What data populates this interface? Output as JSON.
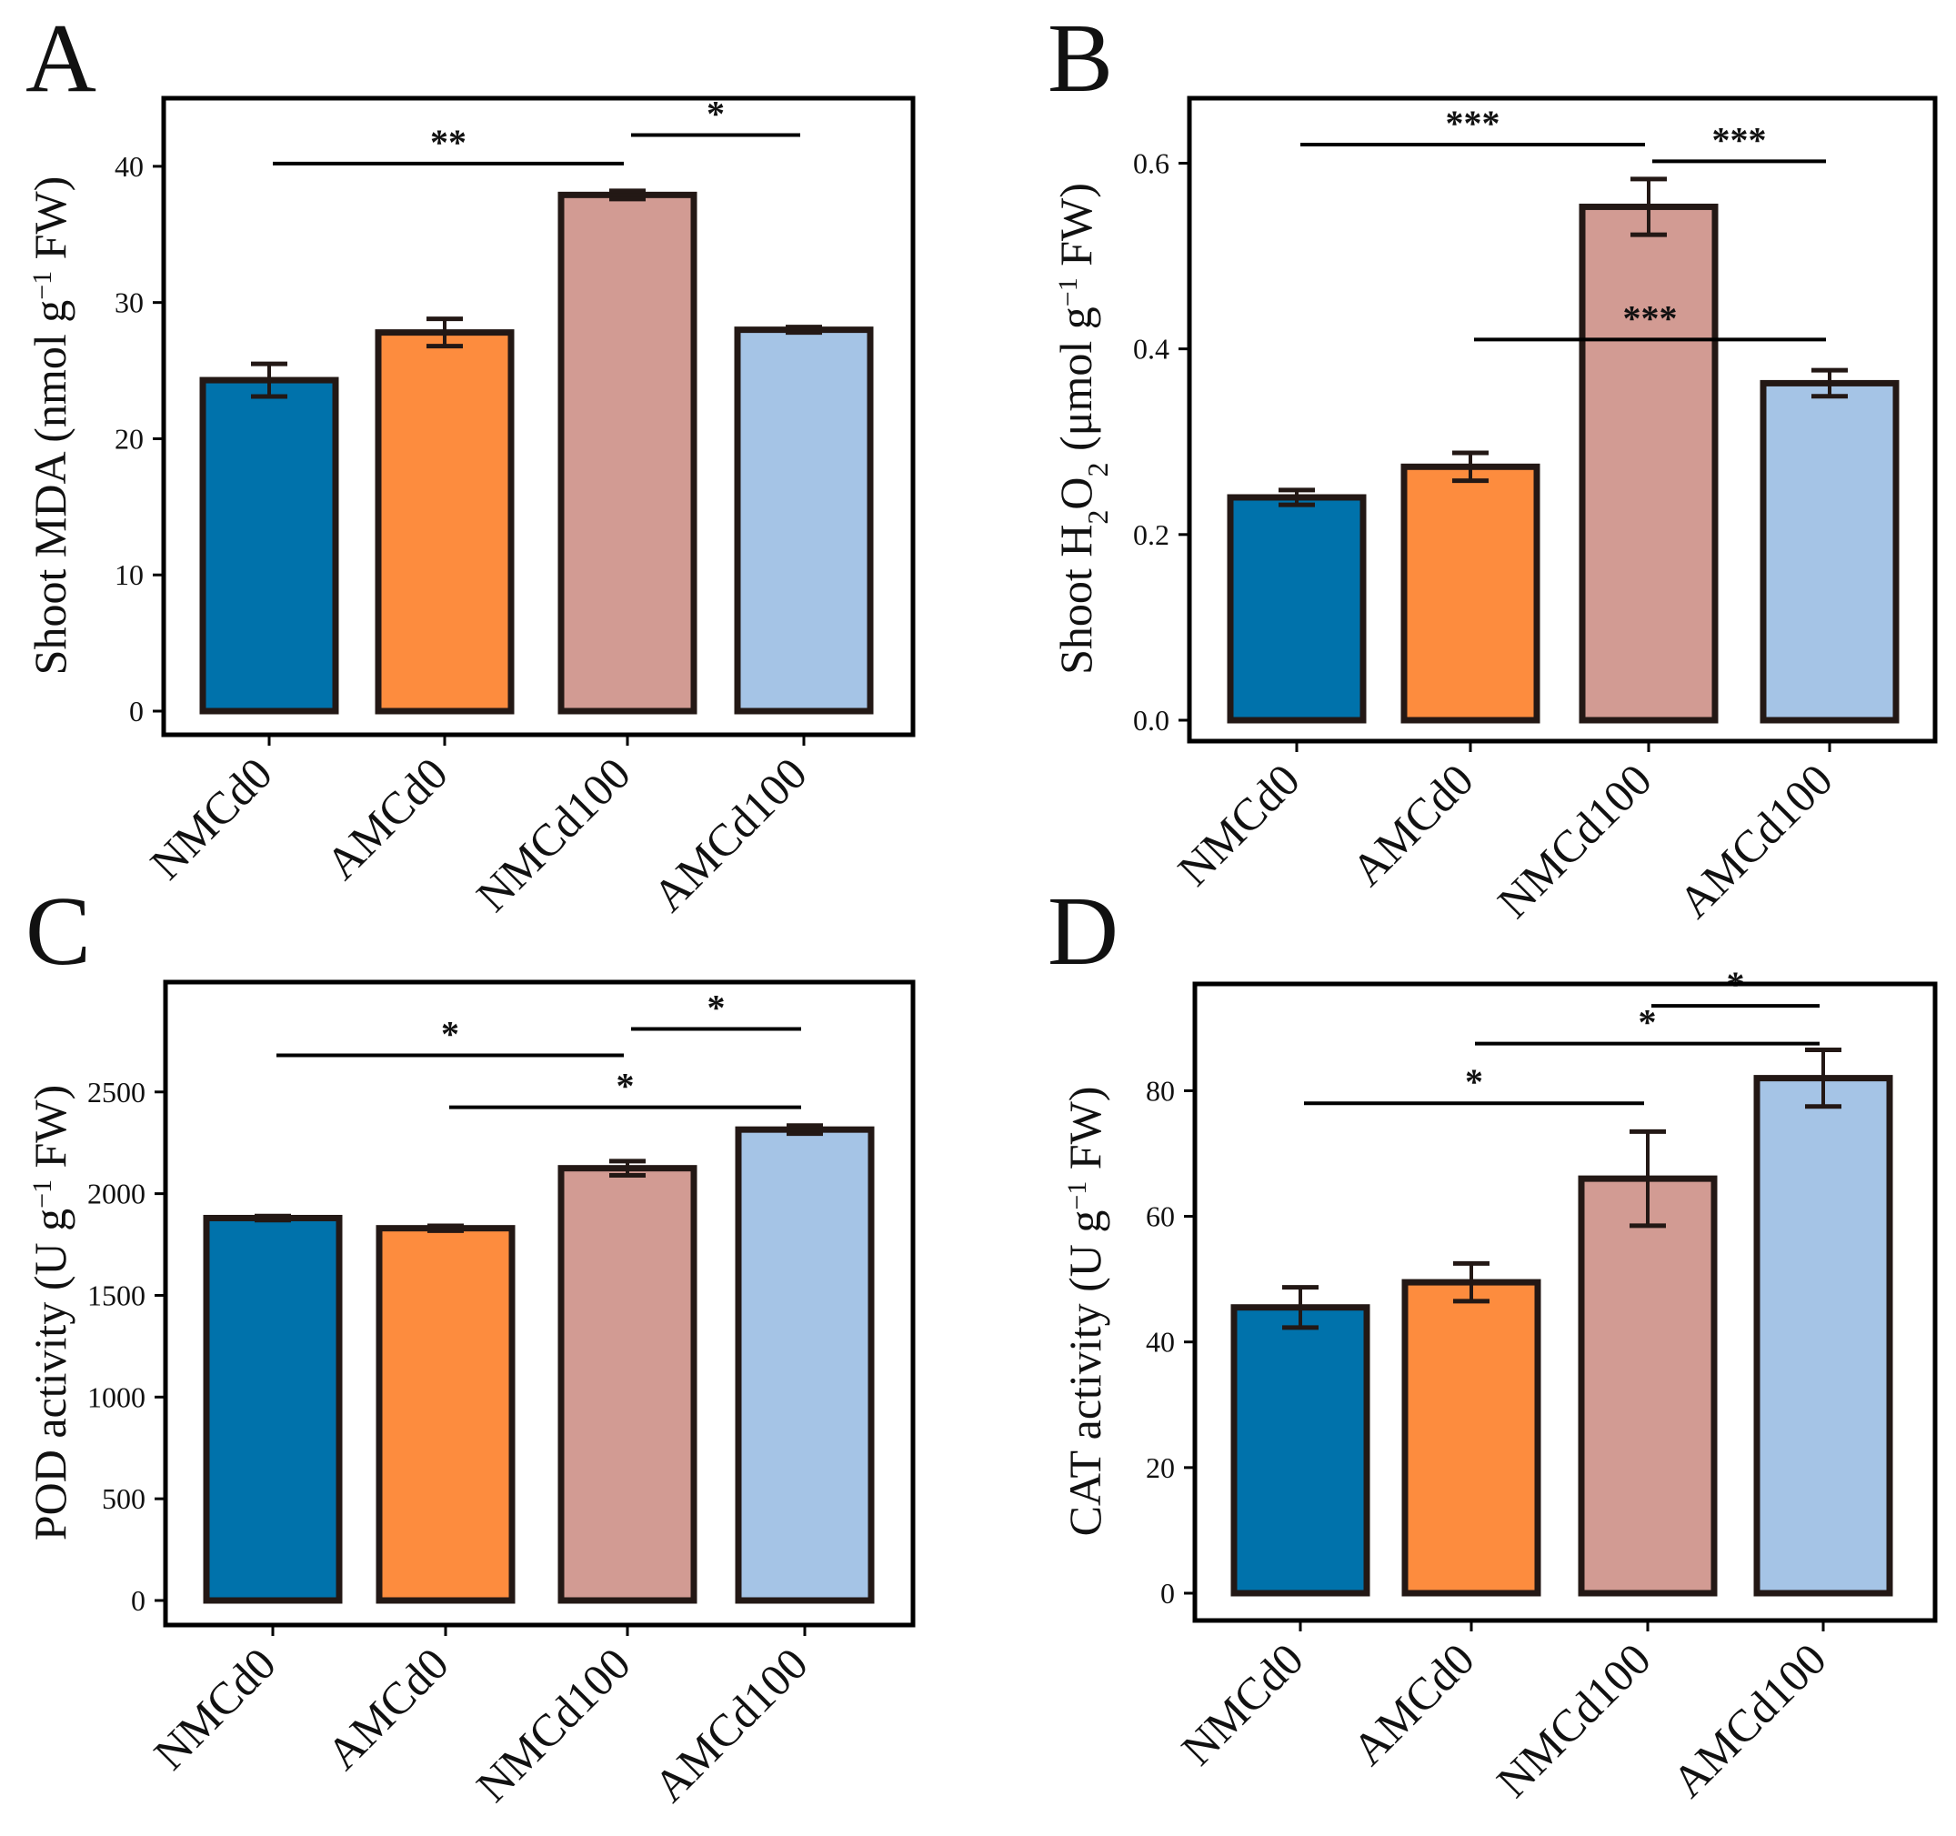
{
  "chart_data": [
    {
      "type": "bar",
      "panel": "A",
      "categories": [
        "NMCd0",
        "AMCd0",
        "NMCd100",
        "AMCd100"
      ],
      "values": [
        24.3,
        27.8,
        37.9,
        28.0
      ],
      "errors": [
        1.2,
        1.0,
        0.3,
        0.2
      ],
      "colors": [
        "#0072ab",
        "#fd8c3e",
        "#d29b93",
        "#a5c4e6"
      ],
      "title": "",
      "ylabel_parts": [
        "Shoot MDA (nmol g",
        "-1",
        " FW)"
      ],
      "ylim": [
        0,
        45
      ],
      "yticks": [
        0,
        10,
        20,
        30,
        40
      ],
      "ytick_labels": [
        "0",
        "10",
        "20",
        "30",
        "40"
      ],
      "grid": false,
      "significance": [
        {
          "from": 0,
          "to": 2,
          "label": "**",
          "y": 40.2
        },
        {
          "from": 2,
          "to": 3,
          "label": "*",
          "y": 42.3
        }
      ]
    },
    {
      "type": "bar",
      "panel": "B",
      "categories": [
        "NMCd0",
        "AMCd0",
        "NMCd100",
        "AMCd100"
      ],
      "values": [
        0.24,
        0.273,
        0.553,
        0.363
      ],
      "errors": [
        0.008,
        0.015,
        0.03,
        0.014
      ],
      "colors": [
        "#0072ab",
        "#fd8c3e",
        "#d29b93",
        "#a5c4e6"
      ],
      "title": "",
      "ylabel_parts": [
        "Shoot H",
        "2",
        "O",
        "2",
        " (μmol g",
        "-1",
        " FW)"
      ],
      "ylim": [
        0,
        0.67
      ],
      "yticks": [
        0.0,
        0.2,
        0.4,
        0.6
      ],
      "ytick_labels": [
        "0.0",
        "0.2",
        "0.4",
        "0.6"
      ],
      "grid": false,
      "significance": [
        {
          "from": 0,
          "to": 2,
          "label": "***",
          "y": 0.62
        },
        {
          "from": 2,
          "to": 3,
          "label": "***",
          "y": 0.602
        },
        {
          "from": 1,
          "to": 3,
          "label": "***",
          "y": 0.41
        }
      ]
    },
    {
      "type": "bar",
      "panel": "C",
      "categories": [
        "NMCd0",
        "AMCd0",
        "NMCd100",
        "AMCd100"
      ],
      "values": [
        1880,
        1830,
        2125,
        2315
      ],
      "errors": [
        10,
        12,
        35,
        20
      ],
      "colors": [
        "#0072ab",
        "#fd8c3e",
        "#d29b93",
        "#a5c4e6"
      ],
      "title": "",
      "ylabel_parts": [
        "POD activity (U g",
        "-1",
        " FW)"
      ],
      "ylim": [
        0,
        3040
      ],
      "yticks": [
        0,
        500,
        1000,
        1500,
        2000,
        2500
      ],
      "ytick_labels": [
        "0",
        "500",
        "1000",
        "1500",
        "2000",
        "2500"
      ],
      "grid": false,
      "significance": [
        {
          "from": 0,
          "to": 2,
          "label": "*",
          "y": 2680
        },
        {
          "from": 2,
          "to": 3,
          "label": "*",
          "y": 2810
        },
        {
          "from": 1,
          "to": 3,
          "label": "*",
          "y": 2425
        }
      ]
    },
    {
      "type": "bar",
      "panel": "D",
      "categories": [
        "NMCd0",
        "AMCd0",
        "NMCd100",
        "AMCd100"
      ],
      "values": [
        45.5,
        49.5,
        66.0,
        82.0
      ],
      "errors": [
        3.2,
        3.0,
        7.5,
        4.5
      ],
      "colors": [
        "#0072ab",
        "#fd8c3e",
        "#d29b93",
        "#a5c4e6"
      ],
      "title": "",
      "ylabel_parts": [
        "CAT activity (U g",
        "-1",
        " FW)"
      ],
      "ylim": [
        0,
        97
      ],
      "yticks": [
        0,
        20,
        40,
        60,
        80
      ],
      "ytick_labels": [
        "0",
        "20",
        "40",
        "60",
        "80"
      ],
      "grid": false,
      "significance": [
        {
          "from": 0,
          "to": 2,
          "label": "*",
          "y": 78
        },
        {
          "from": 1,
          "to": 3,
          "label": "*",
          "y": 87.5
        },
        {
          "from": 2,
          "to": 3,
          "label": "*",
          "y": 93.5
        }
      ]
    }
  ]
}
